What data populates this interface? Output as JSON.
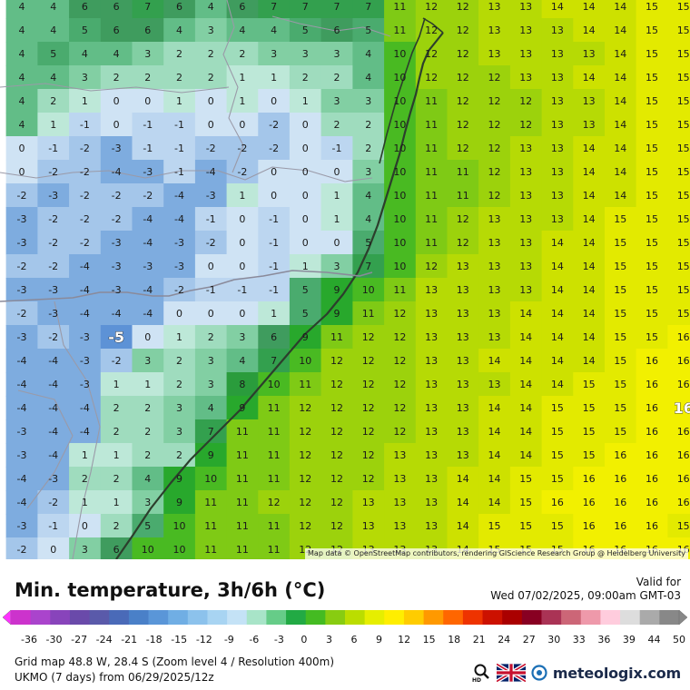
{
  "map": {
    "attribution": "Map data © OpenStreetMap contributors, rendering GIScience Research Group @ Heidelberg University",
    "extrema": [
      {
        "label": "-5",
        "col": 3,
        "row": 14
      },
      {
        "label": "16",
        "col": 21,
        "row": 17
      }
    ],
    "grid": [
      [
        4,
        4,
        6,
        6,
        7,
        6,
        4,
        6,
        7,
        7,
        7,
        7,
        11,
        12,
        12,
        13,
        13,
        14,
        14,
        14,
        15,
        15
      ],
      [
        4,
        4,
        5,
        6,
        6,
        4,
        3,
        4,
        4,
        5,
        6,
        5,
        11,
        12,
        12,
        13,
        13,
        13,
        14,
        14,
        15,
        15
      ],
      [
        4,
        5,
        4,
        4,
        3,
        2,
        2,
        2,
        3,
        3,
        3,
        4,
        10,
        12,
        12,
        13,
        13,
        13,
        13,
        14,
        15,
        15
      ],
      [
        4,
        4,
        3,
        2,
        2,
        2,
        2,
        1,
        1,
        2,
        2,
        4,
        10,
        12,
        12,
        12,
        13,
        13,
        14,
        14,
        15,
        15
      ],
      [
        4,
        2,
        1,
        0,
        0,
        1,
        0,
        1,
        0,
        1,
        3,
        3,
        10,
        11,
        12,
        12,
        12,
        13,
        13,
        14,
        15,
        15
      ],
      [
        4,
        1,
        -1,
        0,
        -1,
        -1,
        0,
        0,
        -2,
        0,
        2,
        2,
        10,
        11,
        12,
        12,
        12,
        13,
        13,
        14,
        15,
        15
      ],
      [
        0,
        -1,
        -2,
        -3,
        -1,
        -1,
        -2,
        -2,
        -2,
        0,
        -1,
        2,
        10,
        11,
        12,
        12,
        13,
        13,
        14,
        14,
        15,
        15
      ],
      [
        0,
        -2,
        -2,
        -4,
        -3,
        -1,
        -4,
        -2,
        0,
        0,
        0,
        3,
        10,
        11,
        11,
        12,
        13,
        13,
        14,
        14,
        15,
        15
      ],
      [
        -2,
        -3,
        -2,
        -2,
        -2,
        -4,
        -3,
        1,
        0,
        0,
        1,
        4,
        10,
        11,
        11,
        12,
        13,
        13,
        14,
        14,
        15,
        15
      ],
      [
        -3,
        -2,
        -2,
        -2,
        -4,
        -4,
        -1,
        0,
        -1,
        0,
        1,
        4,
        10,
        11,
        12,
        13,
        13,
        13,
        14,
        15,
        15,
        15
      ],
      [
        -3,
        -2,
        -2,
        -3,
        -4,
        -3,
        -2,
        0,
        -1,
        0,
        0,
        5,
        10,
        11,
        12,
        13,
        13,
        14,
        14,
        15,
        15,
        15
      ],
      [
        -2,
        -2,
        -4,
        -3,
        -3,
        -3,
        0,
        0,
        -1,
        1,
        3,
        7,
        10,
        12,
        13,
        13,
        13,
        14,
        14,
        15,
        15,
        15
      ],
      [
        -3,
        -3,
        -4,
        -3,
        -4,
        -2,
        -1,
        -1,
        -1,
        5,
        9,
        10,
        11,
        13,
        13,
        13,
        13,
        14,
        14,
        15,
        15,
        15
      ],
      [
        -2,
        -3,
        -4,
        -4,
        -4,
        0,
        0,
        0,
        1,
        5,
        9,
        11,
        12,
        13,
        13,
        13,
        14,
        14,
        14,
        15,
        15,
        15
      ],
      [
        -3,
        -2,
        -3,
        -5,
        0,
        1,
        2,
        3,
        6,
        9,
        11,
        12,
        12,
        13,
        13,
        13,
        14,
        14,
        14,
        15,
        15,
        16
      ],
      [
        -4,
        -4,
        -3,
        -2,
        3,
        2,
        3,
        4,
        7,
        10,
        12,
        12,
        12,
        13,
        13,
        14,
        14,
        14,
        14,
        15,
        16,
        16
      ],
      [
        -4,
        -4,
        -3,
        1,
        1,
        2,
        3,
        8,
        10,
        11,
        12,
        12,
        12,
        13,
        13,
        13,
        14,
        14,
        15,
        15,
        16,
        16
      ],
      [
        -4,
        -4,
        -4,
        2,
        2,
        3,
        4,
        9,
        11,
        12,
        12,
        12,
        12,
        13,
        13,
        14,
        14,
        15,
        15,
        15,
        16,
        16
      ],
      [
        -3,
        -4,
        -4,
        2,
        2,
        3,
        7,
        11,
        11,
        12,
        12,
        12,
        12,
        13,
        13,
        14,
        14,
        15,
        15,
        15,
        16,
        16
      ],
      [
        -3,
        -4,
        1,
        1,
        2,
        2,
        9,
        11,
        11,
        12,
        12,
        12,
        13,
        13,
        13,
        14,
        14,
        15,
        15,
        16,
        16,
        16
      ],
      [
        -4,
        -3,
        2,
        2,
        4,
        9,
        10,
        11,
        11,
        12,
        12,
        12,
        13,
        13,
        14,
        14,
        15,
        15,
        16,
        16,
        16,
        16
      ],
      [
        -4,
        -2,
        1,
        1,
        3,
        9,
        11,
        11,
        12,
        12,
        12,
        13,
        13,
        13,
        14,
        14,
        15,
        16,
        16,
        16,
        16,
        16
      ],
      [
        -3,
        -1,
        0,
        2,
        5,
        10,
        11,
        11,
        11,
        12,
        12,
        13,
        13,
        13,
        14,
        15,
        15,
        15,
        16,
        16,
        16,
        15
      ],
      [
        -2,
        0,
        3,
        6,
        10,
        10,
        11,
        11,
        11,
        12,
        12,
        13,
        13,
        13,
        14,
        15,
        15,
        15,
        16,
        16,
        16,
        16
      ]
    ]
  },
  "header": {
    "title": "Min. temperature, 3h/6h (°C)",
    "valid_label": "Valid for",
    "valid_time": "Wed 07/02/2025, 09:00am GMT-03"
  },
  "legend": {
    "ticks": [
      "-36",
      "-30",
      "-27",
      "-24",
      "-21",
      "-18",
      "-15",
      "-12",
      "-9",
      "-6",
      "-3",
      "0",
      "3",
      "6",
      "9",
      "12",
      "15",
      "18",
      "21",
      "24",
      "27",
      "30",
      "33",
      "36",
      "39",
      "44",
      "50"
    ],
    "colors": [
      "#cc33cc",
      "#aa44cc",
      "#8844bb",
      "#6a4aaa",
      "#5a5aaa",
      "#4a6ab8",
      "#4a80c8",
      "#5a96d8",
      "#70aee4",
      "#8cc2ec",
      "#a8d4f2",
      "#c4e2f6",
      "#a8e4c8",
      "#66cc88",
      "#22aa44",
      "#44bb22",
      "#88cc11",
      "#bbdd00",
      "#e6ee00",
      "#ffee00",
      "#ffcc00",
      "#ff9900",
      "#ff6600",
      "#ee3300",
      "#cc1100",
      "#aa0000",
      "#880022",
      "#aa3355",
      "#cc6677",
      "#ee99aa",
      "#ffccdd",
      "#dddddd",
      "#aaaaaa",
      "#888888"
    ]
  },
  "footer": {
    "line1": "Grid map 48.8 W, 28.4 S (Zoom level 4 / Resolution 400m)",
    "line2": "UKMO (7 days) from 06/29/2025/12z",
    "brand": "meteologix.com"
  },
  "icons": [
    "magnifier-hd-icon",
    "uk-flag-icon",
    "meteologix-logo-icon"
  ]
}
